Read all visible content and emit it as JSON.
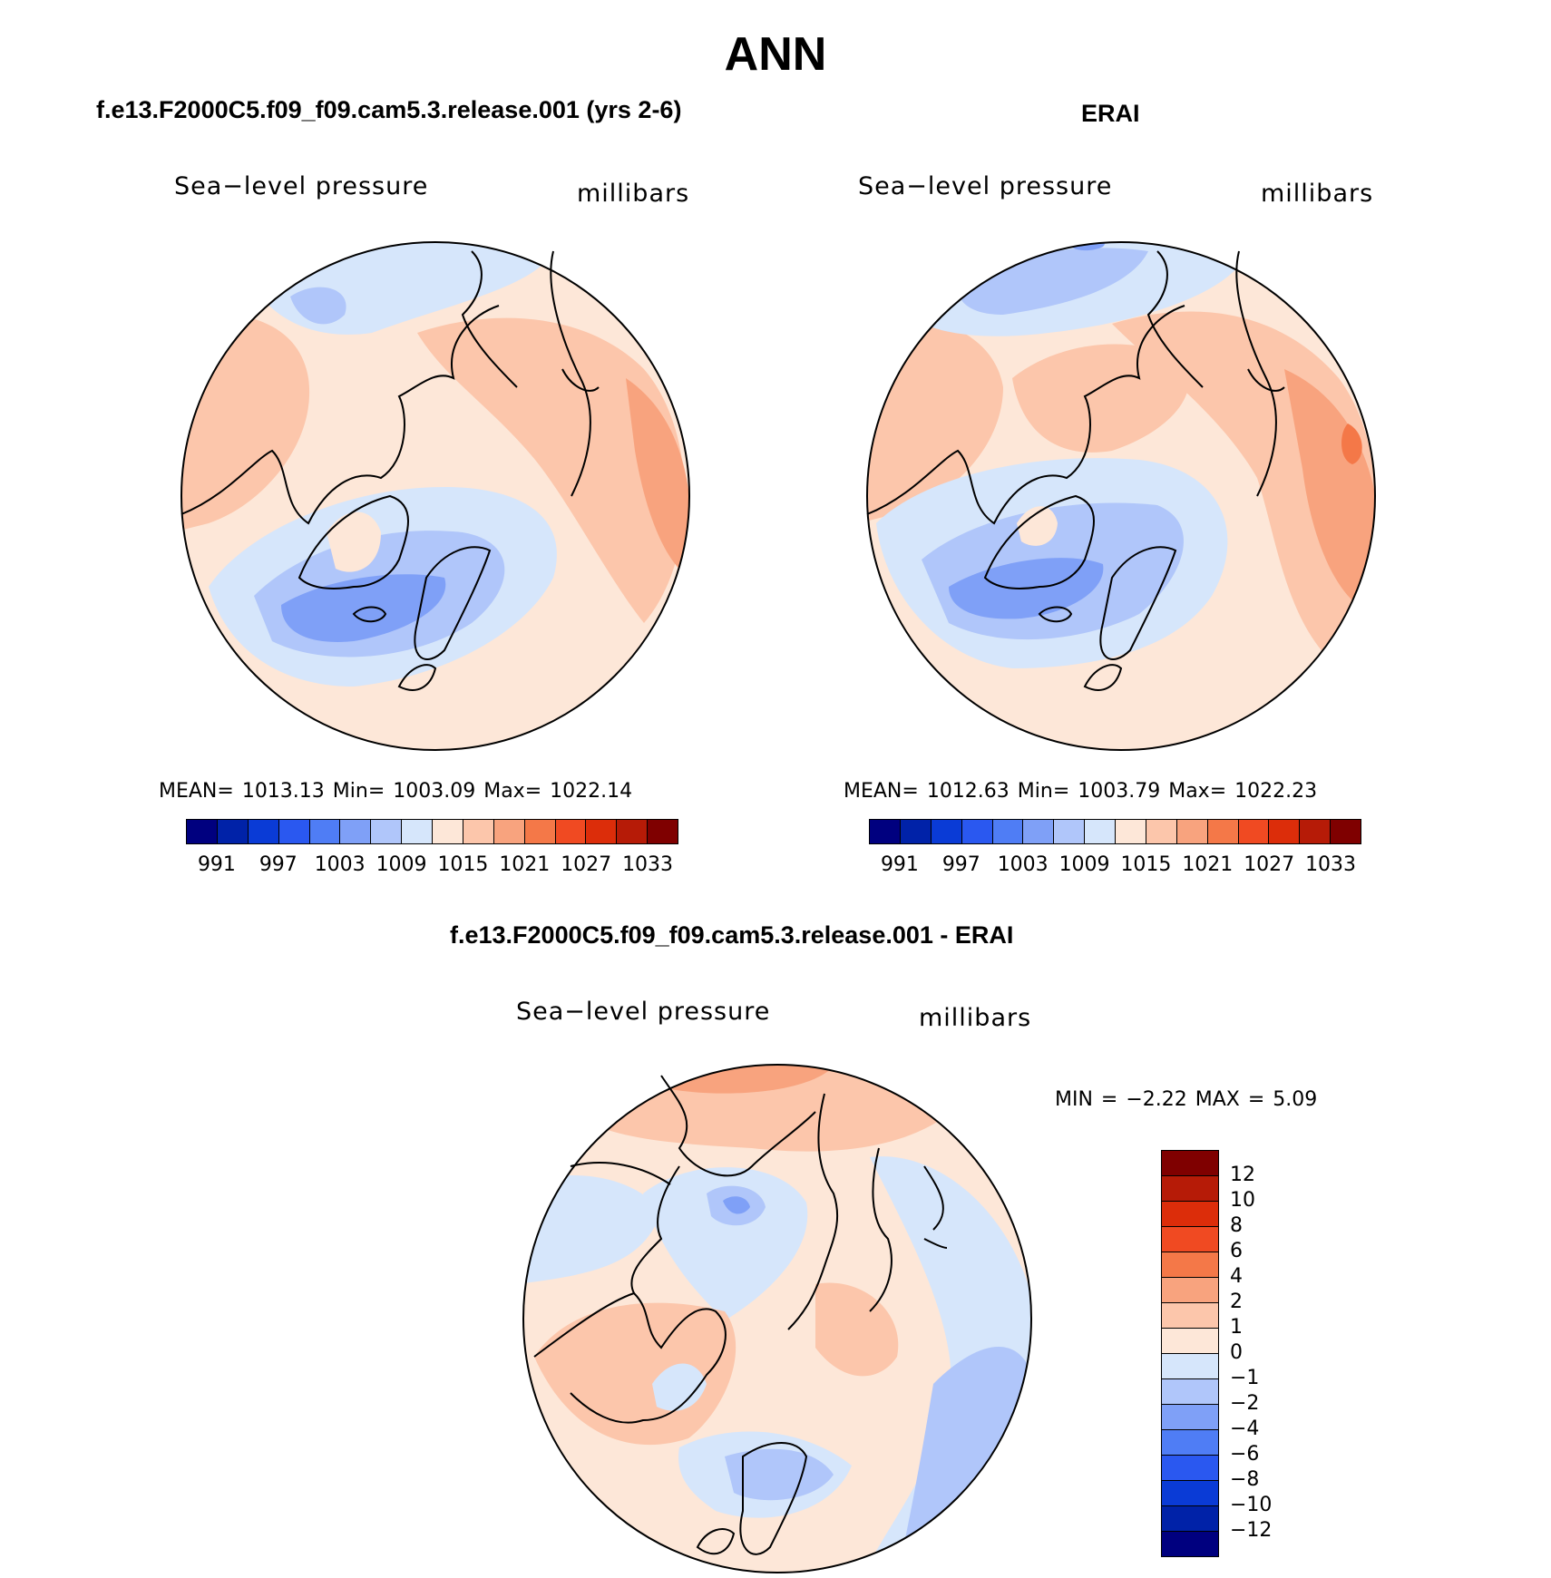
{
  "figure": {
    "title": "ANN"
  },
  "panels": {
    "model": {
      "title": "f.e13.F2000C5.f09_f09.cam5.3.release.001 (yrs 2-6)",
      "variable": "Sea−level pressure",
      "units": "millibars",
      "stats": "MEAN=  1013.13   Min=  1003.09   Max=  1022.14",
      "mean": 1013.13,
      "min": 1003.09,
      "max": 1022.14
    },
    "obs": {
      "title": "ERAI",
      "variable": "Sea−level pressure",
      "units": "millibars",
      "stats": "MEAN=  1012.63   Min=  1003.79   Max=  1022.23",
      "mean": 1012.63,
      "min": 1003.79,
      "max": 1022.23
    },
    "diff": {
      "title": "f.e13.F2000C5.f09_f09.cam5.3.release.001 - ERAI",
      "variable": "Sea−level pressure",
      "units": "millibars",
      "stats": "MIN =    −2.22  MAX =     5.09",
      "min": -2.22,
      "max": 5.09
    }
  },
  "colorbars": {
    "abs": {
      "colors": [
        "#00007f",
        "#0022a8",
        "#0a3bd6",
        "#2a58f0",
        "#4f7df5",
        "#7fa0f7",
        "#b0c6fa",
        "#d6e6fb",
        "#fde7d8",
        "#fcc6ab",
        "#f8a37e",
        "#f47848",
        "#f04a22",
        "#dc2d0a",
        "#b61b07",
        "#7f0000"
      ],
      "ticks": [
        "991",
        "997",
        "1003",
        "1009",
        "1015",
        "1021",
        "1027",
        "1033"
      ]
    },
    "diff": {
      "colors": [
        "#7f0000",
        "#b61b07",
        "#dc2d0a",
        "#f04a22",
        "#f47848",
        "#f8a37e",
        "#fcc6ab",
        "#fde7d8",
        "#d6e6fb",
        "#b0c6fa",
        "#7fa0f7",
        "#4f7df5",
        "#2a58f0",
        "#0a3bd6",
        "#0022a8",
        "#00007f"
      ],
      "ticks": [
        "12",
        "10",
        "8",
        "6",
        "4",
        "2",
        "1",
        "0",
        "−1",
        "−2",
        "−4",
        "−6",
        "−8",
        "−10",
        "−12"
      ]
    }
  }
}
